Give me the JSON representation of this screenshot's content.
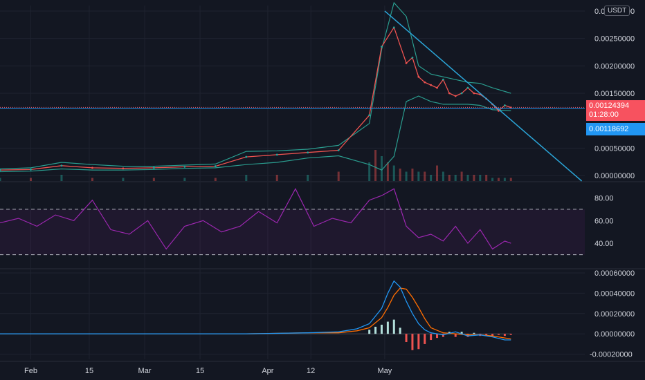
{
  "header": {
    "currency": "USDT"
  },
  "badges": {
    "last_price": "0.00124394",
    "countdown": "01:28:00",
    "alt_price": "0.00118692"
  },
  "colors": {
    "background": "#131722",
    "grid": "#1f2330",
    "up": "#26a69a",
    "down": "#ef5350",
    "bollinger": "#2a9d8f",
    "trendline": "#2ba5d8",
    "rsi": "#9c27b0",
    "macd": "#2196f3",
    "signal": "#ff6d00",
    "last_price": "#f7525f",
    "alt_price": "#2196f3"
  },
  "x_axis": {
    "labels": [
      "Feb",
      "15",
      "Mar",
      "15",
      "Apr",
      "12",
      "May"
    ]
  },
  "chart_data": [
    {
      "type": "line",
      "panel": "price",
      "y_ticks": [
        "0.00300000",
        "0.00250000",
        "0.00200000",
        "0.00150000",
        "0.00050000",
        "0.00000000"
      ],
      "ylim": [
        -0.0001,
        0.0031
      ],
      "series": [
        {
          "kind": "close",
          "x": [
            0,
            5,
            10,
            15,
            20,
            25,
            30,
            35,
            40,
            45,
            50,
            55,
            60,
            62,
            64,
            66,
            67,
            68,
            69,
            70,
            71,
            72,
            73,
            74,
            75,
            76,
            77,
            78,
            79,
            80,
            81,
            82,
            83
          ],
          "values": [
            0.0001,
            0.00011,
            0.00018,
            0.00014,
            0.00013,
            0.00014,
            0.00016,
            0.00017,
            0.00034,
            0.00038,
            0.00042,
            0.00046,
            0.0011,
            0.00235,
            0.0027,
            0.00205,
            0.00215,
            0.0018,
            0.0017,
            0.00165,
            0.0016,
            0.00175,
            0.0015,
            0.00145,
            0.0015,
            0.0016,
            0.0015,
            0.00148,
            0.0014,
            0.0013,
            0.00118,
            0.00128,
            0.00124
          ]
        },
        {
          "kind": "bollinger",
          "x": [
            0,
            5,
            10,
            15,
            20,
            25,
            30,
            35,
            40,
            45,
            50,
            55,
            60,
            62,
            64,
            66,
            68,
            70,
            72,
            74,
            76,
            78,
            80,
            83
          ],
          "upper": [
            0.00012,
            0.00014,
            0.00024,
            0.0002,
            0.00017,
            0.00017,
            0.00019,
            0.00021,
            0.00044,
            0.00045,
            0.00048,
            0.00055,
            0.00095,
            0.0023,
            0.00315,
            0.0029,
            0.002,
            0.00185,
            0.0018,
            0.00175,
            0.0017,
            0.00168,
            0.0016,
            0.0015
          ],
          "lower": [
            7e-05,
            8e-05,
            0.00012,
            0.0001,
            0.0001,
            0.00011,
            0.00013,
            0.00014,
            0.0002,
            0.00024,
            0.00032,
            0.00036,
            0.0002,
            0.0001,
            0.00035,
            0.00135,
            0.00145,
            0.00135,
            0.0013,
            0.0013,
            0.0013,
            0.00128,
            0.0012,
            0.00118
          ]
        },
        {
          "kind": "trendline",
          "x": [
            62.5,
            94.5
          ],
          "values": [
            0.003,
            -0.0001
          ]
        },
        {
          "kind": "volume",
          "x": [
            0,
            5,
            10,
            15,
            20,
            25,
            30,
            35,
            40,
            45,
            50,
            55,
            60,
            61,
            62,
            63,
            64,
            65,
            66,
            67,
            68,
            69,
            70,
            71,
            72,
            73,
            74,
            75,
            76,
            77,
            78,
            79,
            80,
            81,
            82,
            83
          ],
          "values": [
            1,
            1,
            2,
            1,
            1,
            1,
            1,
            1,
            2,
            2,
            2,
            3,
            6,
            10,
            8,
            6,
            5,
            4,
            3,
            4,
            3,
            3,
            2,
            5,
            3,
            2,
            2,
            3,
            2,
            2,
            2,
            2,
            1,
            1,
            1,
            1
          ]
        }
      ]
    },
    {
      "type": "line",
      "panel": "rsi",
      "y_ticks": [
        "80.00",
        "60.00",
        "40.00"
      ],
      "ylim": [
        20,
        90
      ],
      "bands": [
        70,
        30
      ],
      "series": [
        {
          "name": "RSI",
          "x": [
            0,
            3,
            6,
            9,
            12,
            15,
            18,
            21,
            24,
            27,
            30,
            33,
            36,
            39,
            42,
            45,
            48,
            51,
            54,
            57,
            60,
            62,
            64,
            66,
            68,
            70,
            72,
            74,
            76,
            78,
            80,
            82,
            83
          ],
          "values": [
            58,
            62,
            55,
            65,
            60,
            78,
            52,
            48,
            60,
            35,
            55,
            60,
            50,
            55,
            68,
            58,
            88,
            55,
            62,
            58,
            78,
            82,
            88,
            55,
            45,
            48,
            42,
            55,
            40,
            52,
            35,
            42,
            40
          ]
        }
      ]
    },
    {
      "type": "line",
      "panel": "macd",
      "y_ticks": [
        "0.00060000",
        "0.00040000",
        "0.00020000",
        "0.00000000",
        "-0.00020000"
      ],
      "ylim": [
        -0.00025,
        0.00062
      ],
      "series": [
        {
          "name": "MACD",
          "x": [
            0,
            10,
            20,
            30,
            40,
            50,
            55,
            58,
            60,
            62,
            63,
            64,
            65,
            66,
            67,
            68,
            69,
            70,
            72,
            74,
            76,
            78,
            80,
            82,
            83
          ],
          "values": [
            0,
            0,
            0,
            0,
            0,
            1e-05,
            2e-05,
            5e-05,
            0.0001,
            0.00025,
            0.0004,
            0.00052,
            0.00046,
            0.00032,
            0.0002,
            0.0001,
            4e-05,
            1e-05,
            -1e-05,
            2e-05,
            -2e-05,
            -1e-05,
            -3e-05,
            -6e-05,
            -6e-05
          ]
        },
        {
          "name": "Signal",
          "x": [
            0,
            10,
            20,
            30,
            40,
            50,
            55,
            58,
            60,
            62,
            63,
            64,
            65,
            66,
            67,
            68,
            69,
            70,
            72,
            74,
            76,
            78,
            80,
            82,
            83
          ],
          "values": [
            0,
            0,
            0,
            0,
            0,
            1e-05,
            1e-05,
            3e-05,
            6e-05,
            0.00016,
            0.00026,
            0.00038,
            0.00045,
            0.00044,
            0.00036,
            0.00026,
            0.00015,
            6e-05,
            1e-05,
            0.0,
            -1e-05,
            -1e-05,
            -2e-05,
            -4e-05,
            -5e-05
          ]
        },
        {
          "name": "Histogram",
          "x": [
            60,
            61,
            62,
            63,
            64,
            65,
            66,
            67,
            68,
            69,
            70,
            71,
            72,
            73,
            74,
            75,
            76,
            77,
            78,
            79,
            80,
            81,
            82,
            83
          ],
          "values": [
            4e-05,
            7e-05,
            9e-05,
            0.00012,
            0.00014,
            6e-05,
            -8e-05,
            -0.00016,
            -0.00015,
            -0.0001,
            -6e-05,
            -4e-05,
            -3e-05,
            2e-05,
            -3e-05,
            2e-05,
            -3e-05,
            1e-05,
            -2e-05,
            -2e-05,
            -2e-05,
            -1e-05,
            -2e-05,
            -1e-05
          ]
        }
      ]
    }
  ]
}
